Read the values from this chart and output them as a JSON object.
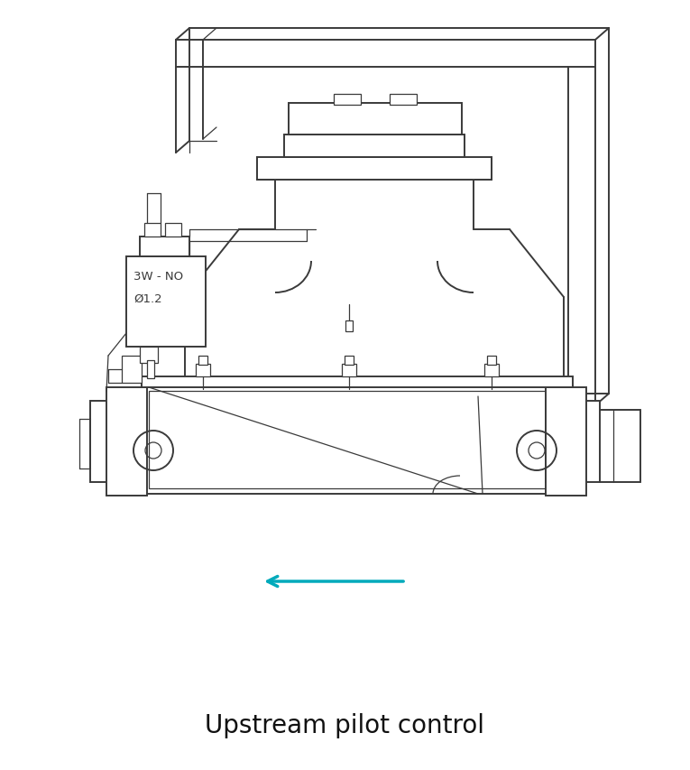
{
  "title": "Upstream pilot control",
  "title_fontsize": 20,
  "label_text": "3W - NO\nØ1.2",
  "line_color": "#3a3a3a",
  "lw_main": 1.4,
  "lw_thin": 0.9,
  "bg_color": "#ffffff",
  "arrow_color": "#00AABB"
}
